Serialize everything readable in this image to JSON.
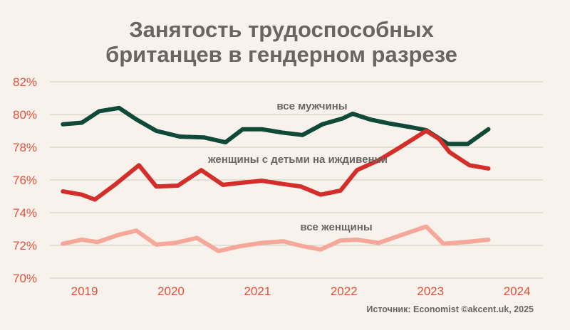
{
  "title_line1": "Занятость трудоспособных",
  "title_line2": "британцев в гендерном разрезе",
  "source": "Источник: Economist ©akcent.uk, 2025",
  "colors": {
    "background": "#f7f2eb",
    "axis_text": "#e0513d",
    "title_text": "#6b6461",
    "grid": "#cfc9c2"
  },
  "chart_data": {
    "type": "line",
    "y_ticks": [
      "70%",
      "72%",
      "74%",
      "76%",
      "78%",
      "80%",
      "82%"
    ],
    "x_ticks": [
      {
        "label": "2019",
        "value": 2019
      },
      {
        "label": "2020",
        "value": 2020
      },
      {
        "label": "2021",
        "value": 2021
      },
      {
        "label": "2022",
        "value": 2022
      },
      {
        "label": "2023",
        "value": 2023
      },
      {
        "label": "2024",
        "value": 2024
      }
    ],
    "xlim": [
      2018.6,
      2024.3
    ],
    "ylim": [
      70,
      82
    ],
    "grid": true,
    "series": [
      {
        "name": "все мужчины",
        "color": "#0f4a38",
        "points": [
          [
            2018.75,
            79.4
          ],
          [
            2018.97,
            79.5
          ],
          [
            2019.17,
            80.2
          ],
          [
            2019.4,
            80.4
          ],
          [
            2019.6,
            79.7
          ],
          [
            2019.83,
            79.0
          ],
          [
            2020.1,
            78.65
          ],
          [
            2020.38,
            78.6
          ],
          [
            2020.63,
            78.3
          ],
          [
            2020.83,
            79.1
          ],
          [
            2021.05,
            79.1
          ],
          [
            2021.28,
            78.9
          ],
          [
            2021.52,
            78.75
          ],
          [
            2021.75,
            79.4
          ],
          [
            2021.98,
            79.75
          ],
          [
            2022.1,
            80.05
          ],
          [
            2022.3,
            79.7
          ],
          [
            2022.52,
            79.45
          ],
          [
            2022.75,
            79.25
          ],
          [
            2022.95,
            79.05
          ],
          [
            2023.2,
            78.2
          ],
          [
            2023.43,
            78.2
          ],
          [
            2023.67,
            79.1
          ]
        ]
      },
      {
        "name": "женщины с детьми на иждивении",
        "color": "#d42e2b",
        "points": [
          [
            2018.75,
            75.3
          ],
          [
            2018.97,
            75.1
          ],
          [
            2019.12,
            74.8
          ],
          [
            2019.35,
            75.7
          ],
          [
            2019.63,
            76.9
          ],
          [
            2019.83,
            75.6
          ],
          [
            2020.08,
            75.65
          ],
          [
            2020.35,
            76.6
          ],
          [
            2020.6,
            75.7
          ],
          [
            2020.85,
            75.85
          ],
          [
            2021.05,
            75.95
          ],
          [
            2021.3,
            75.75
          ],
          [
            2021.5,
            75.6
          ],
          [
            2021.73,
            75.1
          ],
          [
            2021.96,
            75.35
          ],
          [
            2022.15,
            76.6
          ],
          [
            2022.4,
            77.2
          ],
          [
            2022.65,
            78.0
          ],
          [
            2022.95,
            79.0
          ],
          [
            2023.1,
            78.5
          ],
          [
            2023.22,
            77.7
          ],
          [
            2023.45,
            76.9
          ],
          [
            2023.67,
            76.7
          ]
        ]
      },
      {
        "name": "все женщины",
        "color": "#f5a79a",
        "points": [
          [
            2018.75,
            72.1
          ],
          [
            2018.97,
            72.35
          ],
          [
            2019.15,
            72.2
          ],
          [
            2019.4,
            72.65
          ],
          [
            2019.6,
            72.9
          ],
          [
            2019.83,
            72.05
          ],
          [
            2020.05,
            72.15
          ],
          [
            2020.3,
            72.45
          ],
          [
            2020.55,
            71.65
          ],
          [
            2020.8,
            71.95
          ],
          [
            2021.05,
            72.15
          ],
          [
            2021.3,
            72.25
          ],
          [
            2021.52,
            71.95
          ],
          [
            2021.73,
            71.75
          ],
          [
            2021.96,
            72.3
          ],
          [
            2022.15,
            72.35
          ],
          [
            2022.4,
            72.15
          ],
          [
            2022.7,
            72.7
          ],
          [
            2022.95,
            73.15
          ],
          [
            2023.15,
            72.1
          ],
          [
            2023.4,
            72.2
          ],
          [
            2023.67,
            72.35
          ]
        ]
      }
    ],
    "annotations": [
      {
        "text": "все мужчины",
        "series_index": 0
      },
      {
        "text": "женщины с детьми на иждивении",
        "series_index": 1
      },
      {
        "text": "все женщины",
        "series_index": 2
      }
    ]
  }
}
